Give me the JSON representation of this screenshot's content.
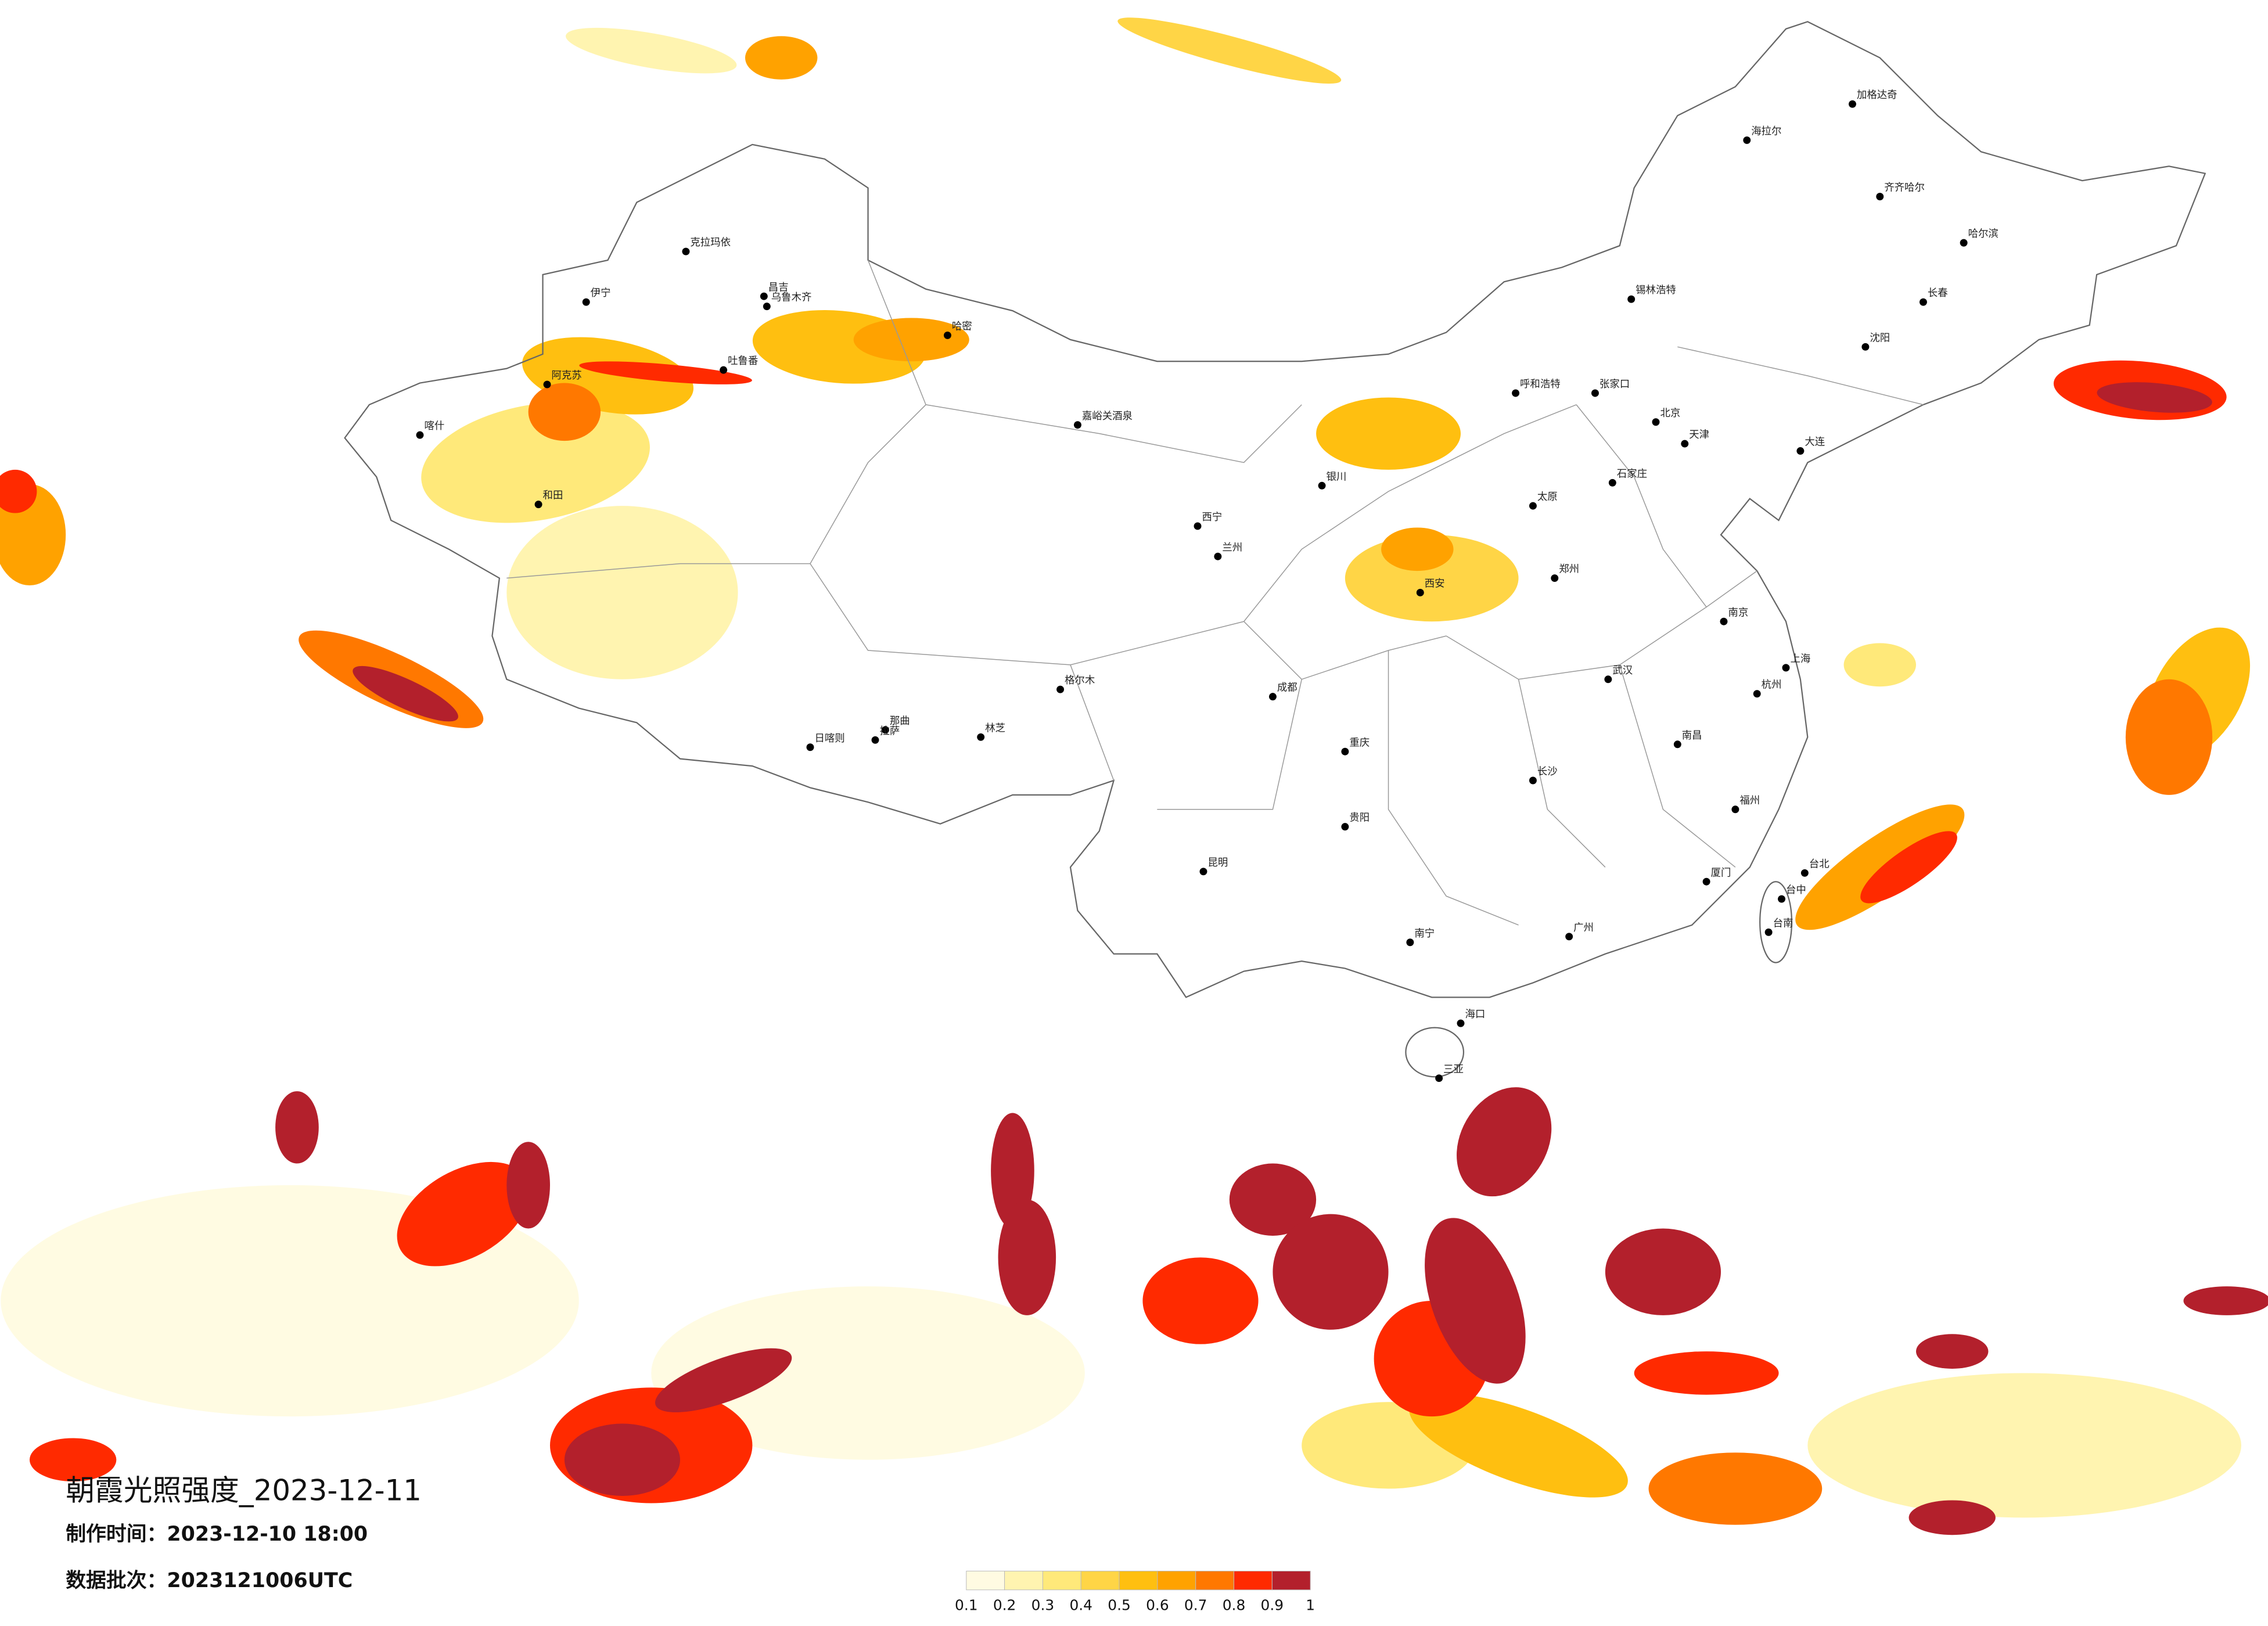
{
  "title": "朝霞光照强度_2023-12-11",
  "make_time": {
    "label": "制作时间：",
    "value": "2023-12-10 18:00"
  },
  "batch": {
    "label": "数据批次：",
    "value": "2023121006UTC"
  },
  "legend": {
    "ticks": [
      0.1,
      0.2,
      0.3,
      0.4,
      0.5,
      0.6,
      0.7,
      0.8,
      0.9,
      1
    ],
    "colors": [
      "#fffbe2",
      "#fff4b0",
      "#ffe97a",
      "#ffd546",
      "#ffbf10",
      "#ffa200",
      "#ff7800",
      "#ff2a00",
      "#b3202c"
    ]
  },
  "cities": [
    "克拉玛依",
    "伊宁",
    "乌鲁木齐",
    "昌吉",
    "阿克苏",
    "喀什",
    "和田",
    "吐鲁番",
    "哈密",
    "嘉峪关酒泉",
    "格尔木",
    "那曲",
    "日喀则",
    "拉萨",
    "林芝",
    "西宁",
    "兰州",
    "银川",
    "呼和浩特",
    "锡林浩特",
    "海拉尔",
    "加格达奇",
    "齐齐哈尔",
    "哈尔滨",
    "长春",
    "沈阳",
    "大连",
    "张家口",
    "北京",
    "天津",
    "石家庄",
    "太原",
    "郑州",
    "西安",
    "成都",
    "重庆",
    "贵阳",
    "昆明",
    "南宁",
    "武汉",
    "长沙",
    "南昌",
    "南京",
    "上海",
    "杭州",
    "福州",
    "厦门",
    "广州",
    "海口",
    "三亚",
    "台北",
    "台中",
    "台南"
  ]
}
